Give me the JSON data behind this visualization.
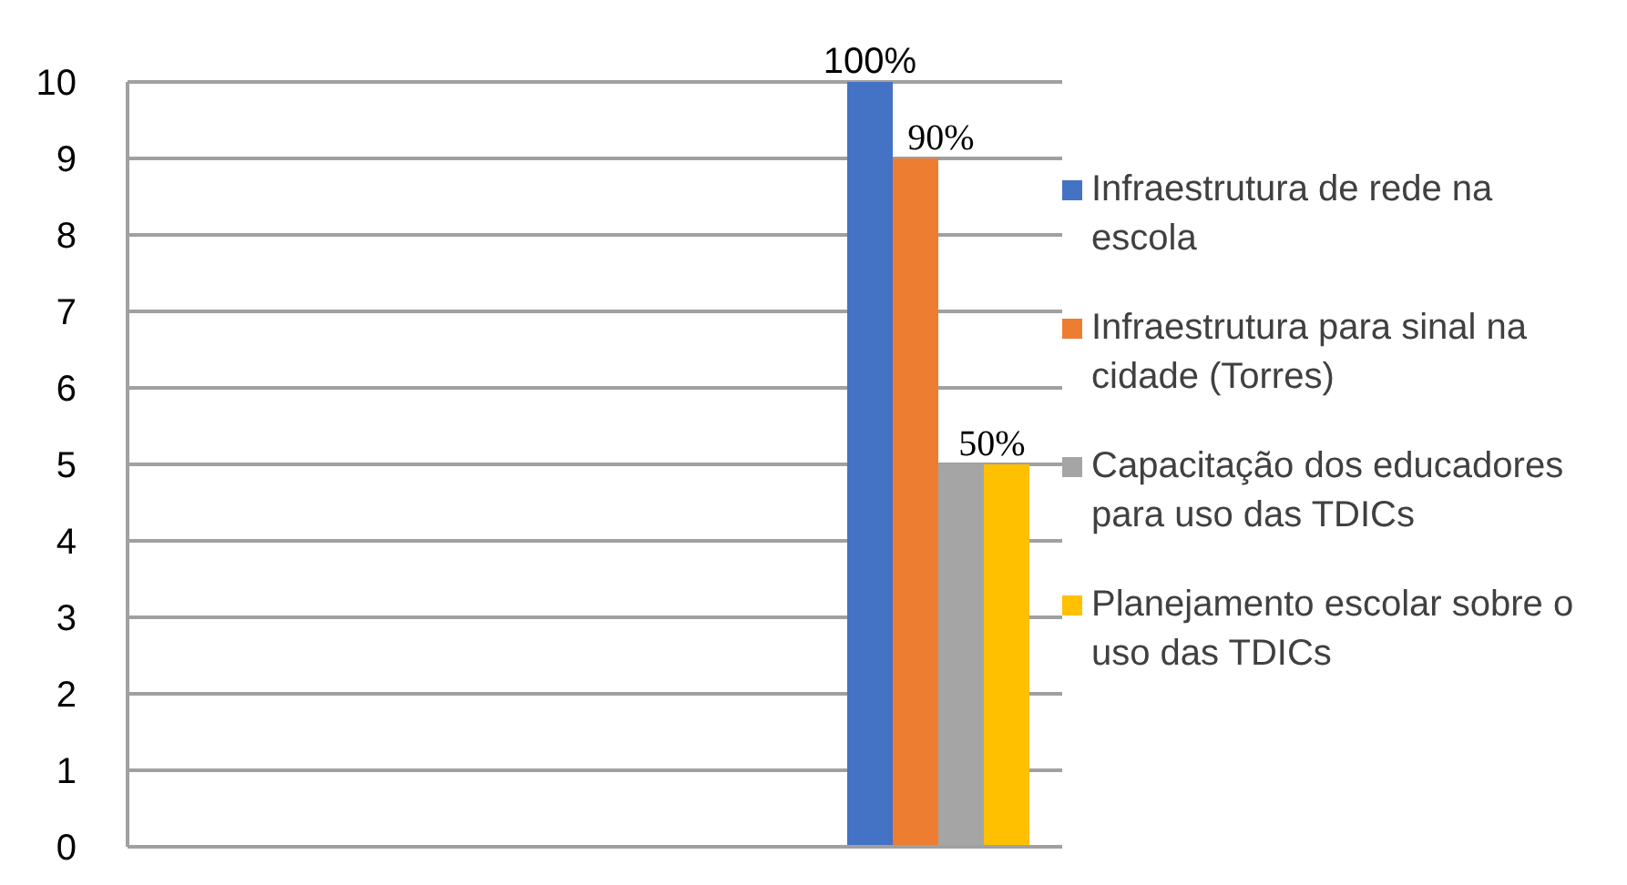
{
  "chart_data": {
    "type": "bar",
    "categories": [
      null
    ],
    "series": [
      {
        "name": "Infraestrutura de rede na escola",
        "color": "#4472c4",
        "values": [
          10
        ]
      },
      {
        "name": "Infraestrutura para sinal na cidade (Torres)",
        "color": "#ed7d31",
        "values": [
          9
        ]
      },
      {
        "name": "Capacitação dos educadores para uso das TDICs",
        "color": "#a5a5a5",
        "values": [
          5
        ]
      },
      {
        "name": "Planejamento escolar sobre o uso das TDICs",
        "color": "#ffc000",
        "values": [
          5
        ]
      }
    ],
    "annotations": [
      {
        "text": "100%",
        "y": 10
      },
      {
        "text": "90%",
        "y": 9
      },
      {
        "text": "50%",
        "y": 5
      }
    ],
    "ylim": [
      0,
      10
    ],
    "yticks": [
      0,
      1,
      2,
      3,
      4,
      5,
      6,
      7,
      8,
      9,
      10
    ],
    "grid": "y",
    "legend": "right"
  }
}
